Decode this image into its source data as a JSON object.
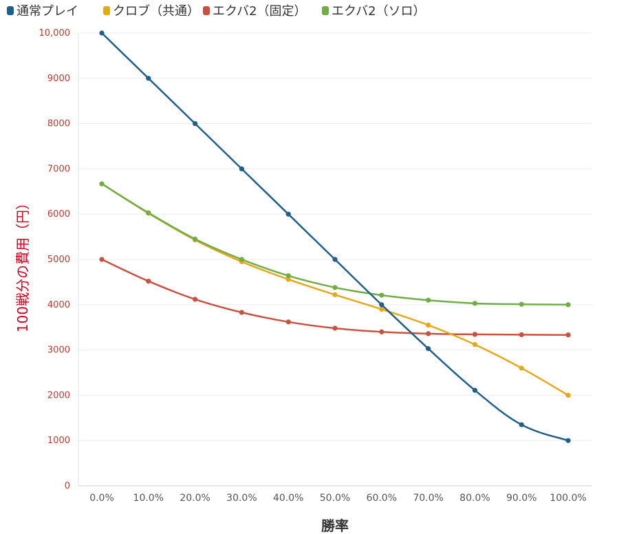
{
  "chart_data": {
    "type": "line",
    "title": "",
    "xlabel": "勝率",
    "ylabel": "100戦分の費用（円）",
    "ylim": [
      0,
      10000
    ],
    "yticks": [
      0,
      1000,
      2000,
      3000,
      4000,
      5000,
      6000,
      7000,
      8000,
      9000,
      10000
    ],
    "ytick_labels": [
      "0",
      "1000",
      "2000",
      "3000",
      "4000",
      "5000",
      "6000",
      "7000",
      "8000",
      "9000",
      "10,000"
    ],
    "categories": [
      "0.0%",
      "10.0%",
      "20.0%",
      "30.0%",
      "40.0%",
      "50.0%",
      "60.0%",
      "70.0%",
      "80.0%",
      "90.0%",
      "100.0%"
    ],
    "legend_position": "top-left",
    "grid": true,
    "series": [
      {
        "name": "通常プレイ",
        "color": "#1f5f8b",
        "values": [
          10000,
          9000,
          8000,
          7000,
          6000,
          5000,
          4000,
          3030,
          2110,
          1350,
          1000
        ]
      },
      {
        "name": "クロブ（共通）",
        "color": "#e6a817",
        "values": [
          6670,
          6020,
          5430,
          4950,
          4560,
          4220,
          3900,
          3550,
          3120,
          2600,
          2000
        ]
      },
      {
        "name": "エクバ2（固定）",
        "color": "#c9513f",
        "values": [
          5000,
          4520,
          4120,
          3830,
          3620,
          3480,
          3400,
          3360,
          3345,
          3338,
          3333
        ]
      },
      {
        "name": "エクバ2（ソロ）",
        "color": "#70ad47",
        "values": [
          6670,
          6030,
          5450,
          5000,
          4640,
          4380,
          4210,
          4100,
          4030,
          4010,
          4000
        ]
      }
    ]
  }
}
